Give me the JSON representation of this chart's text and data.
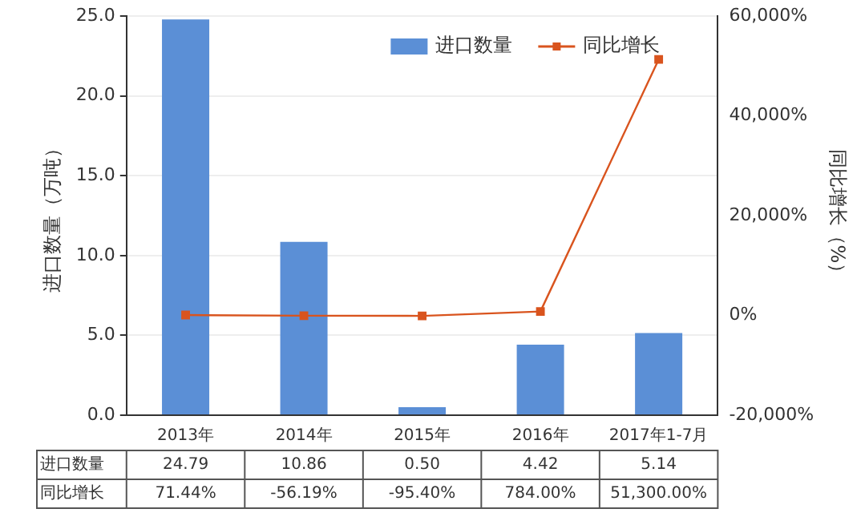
{
  "chart_data": {
    "type": "bar",
    "ylabel": "进口数量（万吨）",
    "y2label": "同比增长（%）",
    "categories": [
      "2013年",
      "2014年",
      "2015年",
      "2016年",
      "2017年1-7月"
    ],
    "series": [
      {
        "name": "进口数量",
        "color": "#5b8fd6",
        "values": [
          24.79,
          10.86,
          0.5,
          4.42,
          5.14
        ],
        "value_labels": [
          "24.79",
          "10.86",
          "0.50",
          "4.42",
          "5.14"
        ]
      },
      {
        "name": "同比增长",
        "type": "line",
        "axis": "y2",
        "color": "#d9541e",
        "marker": "square",
        "values": [
          71.44,
          -56.19,
          -95.4,
          784.0,
          51300.0
        ],
        "value_labels": [
          "71.44%",
          "-56.19%",
          "-95.40%",
          "784.00%",
          "51,300.00%"
        ]
      }
    ],
    "ylim": [
      0,
      25
    ],
    "yticks": [
      {
        "value": 0,
        "label": "0.0"
      },
      {
        "value": 5,
        "label": "5.0"
      },
      {
        "value": 10,
        "label": "10.0"
      },
      {
        "value": 15,
        "label": "15.0"
      },
      {
        "value": 20,
        "label": "20.0"
      },
      {
        "value": 25,
        "label": "25.0"
      }
    ],
    "y2lim": [
      -20000,
      60000
    ],
    "y2ticks": [
      {
        "value": -20000,
        "label": "-20,000%"
      },
      {
        "value": 0,
        "label": "0%"
      },
      {
        "value": 20000,
        "label": "20,000%"
      },
      {
        "value": 40000,
        "label": "40,000%"
      },
      {
        "value": 60000,
        "label": "60,000%"
      }
    ],
    "grid": "y",
    "legend": "top right"
  }
}
